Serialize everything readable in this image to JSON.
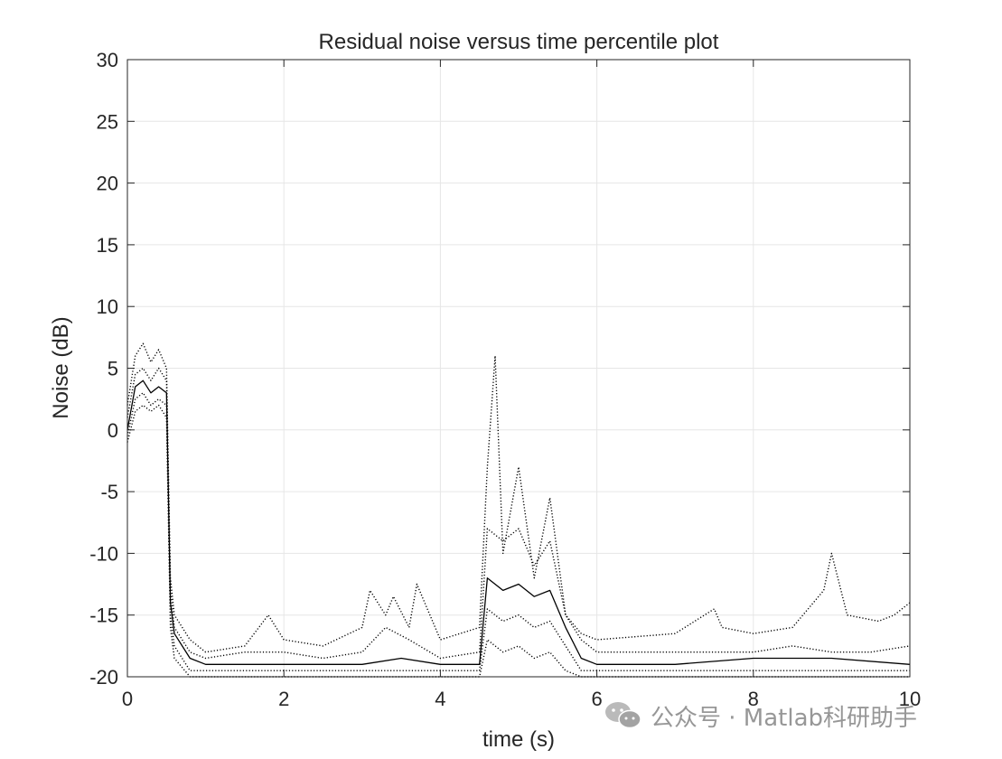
{
  "chart_data": {
    "type": "line",
    "title": "Residual noise versus time percentile plot",
    "xlabel": "time (s)",
    "ylabel": "Noise (dB)",
    "xlim": [
      0,
      10
    ],
    "ylim": [
      -20,
      30
    ],
    "xticks": [
      0,
      2,
      4,
      6,
      8,
      10
    ],
    "yticks": [
      -20,
      -15,
      -10,
      -5,
      0,
      5,
      10,
      15,
      20,
      25,
      30
    ],
    "grid": true,
    "legend": "none",
    "line_color": "#000000",
    "series": [
      {
        "style": "dotted",
        "x": [
          0,
          0.1,
          0.2,
          0.3,
          0.4,
          0.5,
          0.55,
          0.6,
          0.8,
          1.0,
          1.5,
          1.8,
          2.0,
          2.5,
          3.0,
          3.1,
          3.3,
          3.4,
          3.6,
          3.7,
          4.0,
          4.5,
          4.6,
          4.7,
          4.8,
          5.0,
          5.2,
          5.4,
          5.6,
          5.8,
          6.0,
          7.0,
          7.5,
          7.6,
          8.0,
          8.5,
          8.9,
          9.0,
          9.2,
          9.6,
          9.8,
          10.0
        ],
        "y": [
          2,
          6,
          7,
          5.5,
          6.5,
          5,
          -12,
          -15,
          -17,
          -18,
          -17.5,
          -15,
          -17,
          -17.5,
          -16,
          -13,
          -15,
          -13.5,
          -16,
          -12.5,
          -17,
          -16,
          -3,
          6,
          -10,
          -3,
          -12,
          -5.5,
          -15,
          -16.5,
          -17,
          -16.5,
          -14.5,
          -16,
          -16.5,
          -16,
          -13,
          -10,
          -15,
          -15.5,
          -15,
          -14
        ]
      },
      {
        "style": "dotted",
        "x": [
          0,
          0.1,
          0.2,
          0.3,
          0.4,
          0.5,
          0.55,
          0.6,
          0.8,
          1.0,
          1.5,
          2.0,
          2.5,
          3.0,
          3.3,
          3.6,
          4.0,
          4.5,
          4.6,
          4.8,
          5.0,
          5.2,
          5.4,
          5.6,
          5.8,
          6.0,
          7.0,
          8.0,
          8.5,
          9.0,
          9.5,
          10.0
        ],
        "y": [
          1,
          4.5,
          5,
          4,
          5,
          4,
          -13,
          -16,
          -18,
          -18.5,
          -18,
          -18,
          -18.5,
          -18,
          -16,
          -17,
          -18.5,
          -18,
          -8,
          -9,
          -8,
          -11,
          -9,
          -15,
          -17,
          -18,
          -18,
          -18,
          -17.5,
          -18,
          -18,
          -17.5
        ]
      },
      {
        "style": "solid",
        "x": [
          0,
          0.1,
          0.2,
          0.3,
          0.4,
          0.5,
          0.55,
          0.6,
          0.8,
          1.0,
          1.5,
          2.0,
          2.5,
          3.0,
          3.5,
          4.0,
          4.5,
          4.6,
          4.8,
          5.0,
          5.2,
          5.4,
          5.6,
          5.8,
          6.0,
          7.0,
          8.0,
          9.0,
          10.0
        ],
        "y": [
          0,
          3.5,
          4,
          3,
          3.5,
          3,
          -14,
          -16.5,
          -18.5,
          -19,
          -19,
          -19,
          -19,
          -19,
          -18.5,
          -19,
          -19,
          -12,
          -13,
          -12.5,
          -13.5,
          -13,
          -16,
          -18.5,
          -19,
          -19,
          -18.5,
          -18.5,
          -19
        ]
      },
      {
        "style": "dotted",
        "x": [
          0,
          0.1,
          0.2,
          0.3,
          0.4,
          0.5,
          0.55,
          0.6,
          0.8,
          1.0,
          1.5,
          2.0,
          2.5,
          3.0,
          3.5,
          4.0,
          4.5,
          4.6,
          4.8,
          5.0,
          5.2,
          5.4,
          5.6,
          5.8,
          6.0,
          7.0,
          8.0,
          9.0,
          10.0
        ],
        "y": [
          -0.5,
          2.5,
          3,
          2,
          2.5,
          2,
          -15,
          -17.5,
          -19.5,
          -19.5,
          -19.5,
          -19.5,
          -19.5,
          -19.5,
          -19.5,
          -19.5,
          -19.5,
          -14.5,
          -15.5,
          -15,
          -16,
          -15.5,
          -17.5,
          -19.5,
          -19.5,
          -19.5,
          -19.5,
          -19.5,
          -19.5
        ]
      },
      {
        "style": "dotted",
        "x": [
          0,
          0.1,
          0.2,
          0.3,
          0.4,
          0.5,
          0.55,
          0.6,
          0.8,
          1.0,
          2.0,
          3.0,
          4.0,
          4.5,
          4.6,
          4.8,
          5.0,
          5.2,
          5.4,
          5.6,
          5.8,
          6.0,
          7.0,
          8.0,
          9.0,
          10.0
        ],
        "y": [
          -1,
          1.5,
          2,
          1.5,
          2,
          1,
          -16,
          -18.5,
          -20,
          -20,
          -20,
          -20,
          -20,
          -20,
          -17,
          -18,
          -17.5,
          -18.5,
          -18,
          -19.5,
          -20,
          -20,
          -20,
          -20,
          -20,
          -20
        ]
      }
    ]
  },
  "watermark": {
    "icon": "wechat-icon",
    "text": "公众号 · Matlab科研助手"
  }
}
